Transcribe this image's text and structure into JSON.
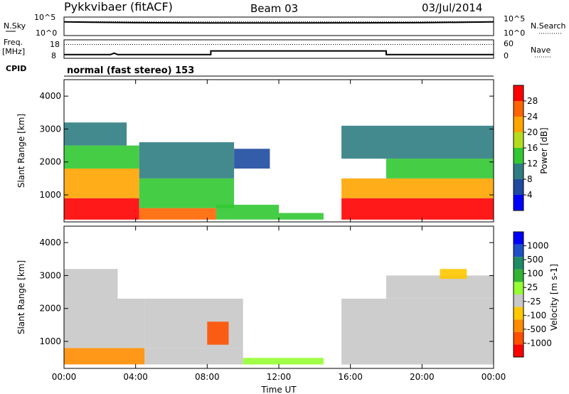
{
  "header": {
    "station": "Pykkvibaer (fitACF)",
    "beam": "Beam 03",
    "date": "03/Jul/2014"
  },
  "strip_panels": {
    "nsky_label": "N.Sky",
    "nsky_ticks": [
      "10^5",
      "10^0"
    ],
    "nsearch_label": "N.Search",
    "nsearch_ticks": [
      "10^5",
      "10^0"
    ],
    "freq_label_line1": "Freq.",
    "freq_label_line2": "[MHz]",
    "freq_ticks": [
      "18",
      "8"
    ],
    "nave_label": "Nave",
    "nave_ticks": [
      "60",
      "0"
    ],
    "cpid_label": "CPID",
    "cpid_text": "normal (fast stereo) 153"
  },
  "colors": {
    "power_scale": [
      "#0000ff",
      "#1e4ba0",
      "#2f7d82",
      "#32c832",
      "#b4dc1e",
      "#ffa500",
      "#ff6400",
      "#ff0000"
    ],
    "velocity_scale": [
      "#ff0000",
      "#ff5000",
      "#ff8c00",
      "#ffc800",
      "#c8c8c8",
      "#96ff32",
      "#32b432",
      "#1e8c64",
      "#1e50c8",
      "#0000ff"
    ],
    "background": "#ffffff"
  },
  "chart_data": [
    {
      "type": "line",
      "panel": "N.Sky / N.Search",
      "ylabel": "N.Sky",
      "y2label": "N.Search",
      "yscale": "log",
      "ylim": [
        1,
        100000
      ],
      "x": [
        "00:00",
        "04:00",
        "08:00",
        "12:00",
        "16:00",
        "20:00",
        "00:00"
      ],
      "series": [
        {
          "name": "N.Sky",
          "values": [
            5000,
            3000,
            2500,
            2500,
            2800,
            3000,
            5000
          ]
        },
        {
          "name": "N.Search",
          "values": [
            6000,
            6000,
            6000,
            6000,
            6000,
            6000,
            6000
          ]
        }
      ]
    },
    {
      "type": "line",
      "panel": "Freq / Nave",
      "ylabel": "Freq. [MHz]",
      "y2label": "Nave",
      "ylim": [
        8,
        18
      ],
      "y2lim": [
        0,
        60
      ],
      "x_hours": [
        0,
        2.6,
        2.8,
        3.0,
        8.2,
        8.2,
        18.0,
        18.0,
        24
      ],
      "series": [
        {
          "name": "Freq.",
          "values": [
            10.0,
            10.0,
            10.8,
            10.0,
            10.0,
            12.0,
            12.0,
            10.0,
            10.0
          ]
        },
        {
          "name": "Nave",
          "values": [
            45,
            45,
            45,
            45,
            45,
            45,
            45,
            45,
            45
          ]
        }
      ]
    },
    {
      "type": "heatmap",
      "panel": "Power",
      "xlabel": "",
      "ylabel": "Slant Range [km]",
      "colorbar_label": "Power [dB]",
      "colorbar_ticks": [
        "28",
        "24",
        "20",
        "16",
        "12",
        "8",
        "4"
      ],
      "yticks": [
        "4000",
        "3000",
        "2000",
        "1000"
      ],
      "ylim": [
        180,
        4500
      ],
      "xlim_hours": [
        0,
        24
      ],
      "regions": [
        {
          "x0": 0.0,
          "x1": 4.2,
          "y0": 250,
          "y1": 900,
          "value": 28
        },
        {
          "x0": 0.0,
          "x1": 4.2,
          "y0": 900,
          "y1": 1800,
          "value": 22
        },
        {
          "x0": 0.0,
          "x1": 4.2,
          "y0": 1800,
          "y1": 2500,
          "value": 14
        },
        {
          "x0": 0.0,
          "x1": 3.5,
          "y0": 2500,
          "y1": 3200,
          "value": 8
        },
        {
          "x0": 4.2,
          "x1": 8.5,
          "y0": 250,
          "y1": 600,
          "value": 24
        },
        {
          "x0": 4.2,
          "x1": 9.5,
          "y0": 600,
          "y1": 1500,
          "value": 14
        },
        {
          "x0": 4.2,
          "x1": 9.5,
          "y0": 1500,
          "y1": 2600,
          "value": 8
        },
        {
          "x0": 8.5,
          "x1": 12.0,
          "y0": 250,
          "y1": 700,
          "value": 14
        },
        {
          "x0": 9.5,
          "x1": 11.5,
          "y0": 1800,
          "y1": 2400,
          "value": 6
        },
        {
          "x0": 12.0,
          "x1": 14.5,
          "y0": 250,
          "y1": 450,
          "value": 12
        },
        {
          "x0": 15.5,
          "x1": 24.0,
          "y0": 250,
          "y1": 900,
          "value": 28
        },
        {
          "x0": 15.5,
          "x1": 24.0,
          "y0": 900,
          "y1": 1500,
          "value": 20
        },
        {
          "x0": 18.0,
          "x1": 24.0,
          "y0": 1500,
          "y1": 2100,
          "value": 14
        },
        {
          "x0": 15.5,
          "x1": 24.0,
          "y0": 2100,
          "y1": 3100,
          "value": 8
        }
      ]
    },
    {
      "type": "heatmap",
      "panel": "Velocity",
      "xlabel": "Time UT",
      "ylabel": "Slant Range [km]",
      "colorbar_label": "Velocity [m s-1]",
      "colorbar_ticks": [
        "1000",
        "500",
        "100",
        "25",
        "-25",
        "-100",
        "-500",
        "-1000"
      ],
      "yticks": [
        "4000",
        "3000",
        "2000",
        "1000"
      ],
      "xticks": [
        "00:00",
        "04:00",
        "08:00",
        "12:00",
        "16:00",
        "20:00",
        "00:00"
      ],
      "ylim": [
        180,
        4500
      ],
      "xlim_hours": [
        0,
        24
      ],
      "regions": [
        {
          "x0": 0.0,
          "x1": 4.5,
          "y0": 300,
          "y1": 800,
          "value": -150
        },
        {
          "x0": 0.0,
          "x1": 4.5,
          "y0": 800,
          "y1": 2300,
          "value": 0
        },
        {
          "x0": 0.0,
          "x1": 3.0,
          "y0": 2300,
          "y1": 3200,
          "value": 0
        },
        {
          "x0": 4.5,
          "x1": 10.0,
          "y0": 300,
          "y1": 800,
          "value": 0
        },
        {
          "x0": 4.5,
          "x1": 10.0,
          "y0": 800,
          "y1": 2300,
          "value": 0
        },
        {
          "x0": 8.0,
          "x1": 9.2,
          "y0": 900,
          "y1": 1600,
          "value": -500
        },
        {
          "x0": 10.0,
          "x1": 14.5,
          "y0": 300,
          "y1": 500,
          "value": 60
        },
        {
          "x0": 15.5,
          "x1": 24.0,
          "y0": 300,
          "y1": 1500,
          "value": 0
        },
        {
          "x0": 15.5,
          "x1": 24.0,
          "y0": 1500,
          "y1": 2300,
          "value": 0
        },
        {
          "x0": 18.0,
          "x1": 24.0,
          "y0": 2300,
          "y1": 3000,
          "value": 0
        },
        {
          "x0": 21.0,
          "x1": 22.5,
          "y0": 2900,
          "y1": 3200,
          "value": -50
        }
      ]
    }
  ]
}
